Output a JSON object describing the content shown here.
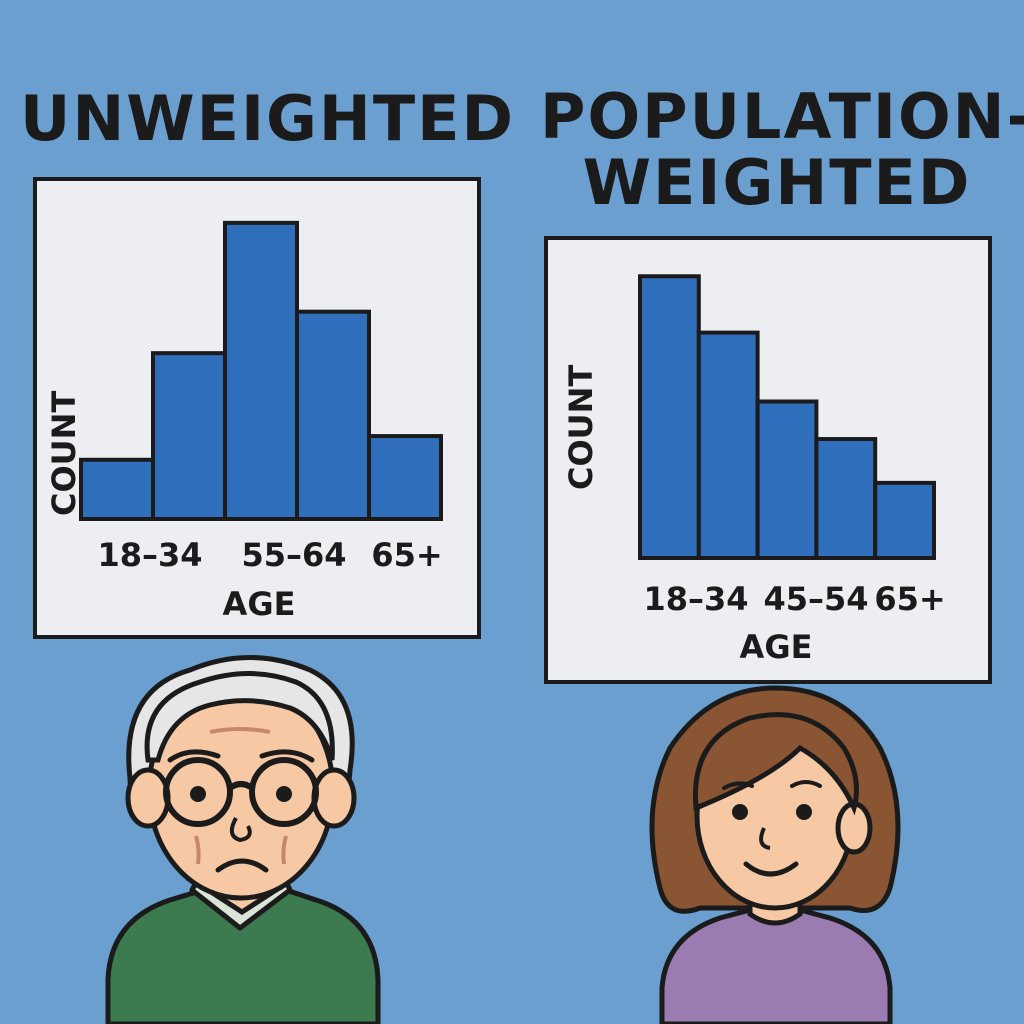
{
  "title_left": "UNWEIGHTED",
  "title_right": "POPULATION-\nWEIGHTED",
  "chart_data": [
    {
      "type": "bar",
      "title": "UNWEIGHTED",
      "xlabel": "AGE",
      "ylabel": "COUNT",
      "tick_labels": [
        "18–34",
        "55–64",
        "65+"
      ],
      "values": [
        1.0,
        2.8,
        5.0,
        3.5,
        1.4
      ],
      "ylim": [
        0,
        5.2
      ],
      "bar_color": "#2f6fbb"
    },
    {
      "type": "bar",
      "title": "POPULATION-WEIGHTED",
      "xlabel": "AGE",
      "ylabel": "COUNT",
      "tick_labels": [
        "18–34",
        "45–54",
        "65+"
      ],
      "values": [
        4.5,
        3.6,
        2.5,
        1.9,
        1.2
      ],
      "ylim": [
        0,
        4.6
      ],
      "bar_color": "#2f6fbb"
    }
  ],
  "colors": {
    "background": "#6a9fcf",
    "panel": "#eceef1",
    "bar": "#2f6fbb",
    "outline": "#1b1b1b"
  }
}
